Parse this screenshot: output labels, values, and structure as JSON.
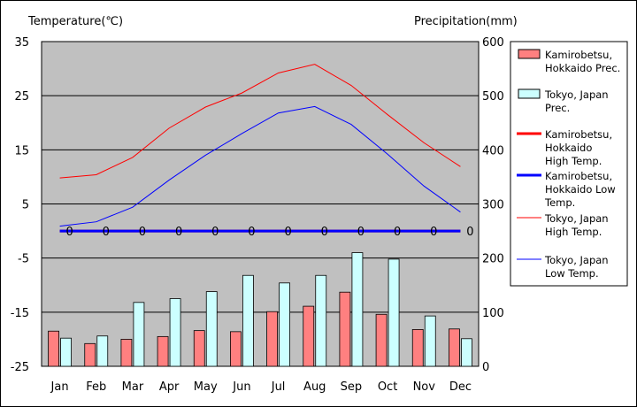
{
  "chart_data": {
    "type": "bar",
    "title": "",
    "ylabel_left": "Temperature(℃)",
    "ylabel_right": "Precipitation(mm)",
    "categories": [
      "Jan",
      "Feb",
      "Mar",
      "Apr",
      "May",
      "Jun",
      "Jul",
      "Aug",
      "Sep",
      "Oct",
      "Nov",
      "Dec"
    ],
    "temp_axis": {
      "min": -25,
      "max": 35,
      "ticks": [
        35,
        25,
        15,
        5,
        -5,
        -15,
        -25
      ]
    },
    "prec_axis": {
      "min": 0,
      "max": 600,
      "ticks": [
        600,
        500,
        400,
        300,
        200,
        100,
        0
      ]
    },
    "grid": true,
    "legend_position": "right",
    "bar_series": [
      {
        "name": "Kamirobetsu, Hokkaido Prec.",
        "color": "#ff8080",
        "values": [
          65,
          42,
          50,
          55,
          66,
          64,
          101,
          111,
          137,
          96,
          68,
          69
        ]
      },
      {
        "name": "Tokyo, Japan Prec.",
        "color": "#ccffff",
        "values": [
          52,
          56,
          118,
          125,
          138,
          168,
          154,
          168,
          210,
          198,
          93,
          51
        ]
      }
    ],
    "line_series": [
      {
        "name": "Kamirobetsu, Hokkaido High Temp.",
        "color": "#ff0000",
        "width": 3,
        "values": [
          0,
          0,
          0,
          0,
          0,
          0,
          0,
          0,
          0,
          0,
          0,
          0
        ]
      },
      {
        "name": "Kamirobetsu, Hokkaido Low Temp.",
        "color": "#0000ff",
        "width": 3,
        "values": [
          0,
          0,
          0,
          0,
          0,
          0,
          0,
          0,
          0,
          0,
          0,
          0
        ]
      },
      {
        "name": "Tokyo, Japan High Temp.",
        "color": "#ff0000",
        "width": 1,
        "values": [
          9.8,
          10.4,
          13.6,
          19.0,
          22.9,
          25.5,
          29.2,
          30.8,
          26.9,
          21.5,
          16.3,
          11.9
        ]
      },
      {
        "name": "Tokyo, Japan Low Temp.",
        "color": "#0000ff",
        "width": 1,
        "values": [
          0.9,
          1.7,
          4.4,
          9.4,
          14.0,
          18.0,
          21.8,
          23.0,
          19.7,
          14.2,
          8.3,
          3.5
        ]
      }
    ],
    "point_labels": [
      "0",
      "0",
      "0",
      "0",
      "0",
      "0",
      "0",
      "0",
      "0",
      "0",
      "0",
      "0"
    ]
  },
  "legend": {
    "items": [
      {
        "kind": "box",
        "color": "#ff8080",
        "lines": [
          "Kamirobetsu,",
          "Hokkaido Prec."
        ]
      },
      {
        "kind": "box",
        "color": "#ccffff",
        "lines": [
          "Tokyo, Japan",
          "Prec."
        ]
      },
      {
        "kind": "line",
        "color": "#ff0000",
        "width": 3,
        "lines": [
          "Kamirobetsu,",
          "Hokkaido",
          "High Temp."
        ]
      },
      {
        "kind": "line",
        "color": "#0000ff",
        "width": 3,
        "lines": [
          "Kamirobetsu,",
          "Hokkaido Low",
          "Temp."
        ]
      },
      {
        "kind": "line",
        "color": "#ff0000",
        "width": 1,
        "lines": [
          "Tokyo, Japan",
          "High Temp."
        ]
      },
      {
        "kind": "line",
        "color": "#0000ff",
        "width": 1,
        "lines": [
          "Tokyo, Japan",
          "Low Temp."
        ]
      }
    ]
  },
  "colors": {
    "plot_background": "#c0c0c0",
    "grid": "#000000"
  }
}
